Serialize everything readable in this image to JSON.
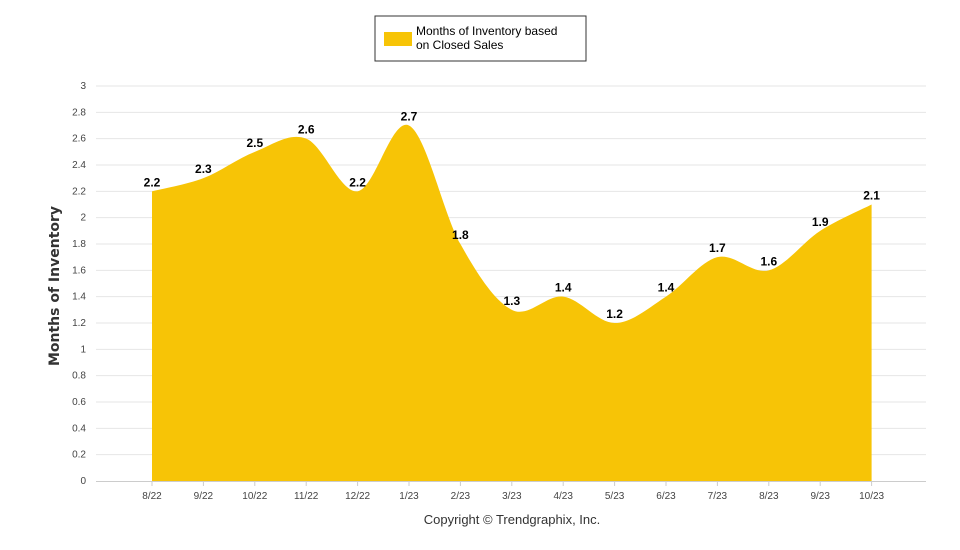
{
  "chart_data": {
    "type": "area",
    "categories": [
      "8/22",
      "9/22",
      "10/22",
      "11/22",
      "12/22",
      "1/23",
      "2/23",
      "3/23",
      "4/23",
      "5/23",
      "6/23",
      "7/23",
      "8/23",
      "9/23",
      "10/23"
    ],
    "series": [
      {
        "name": "Months of Inventory based on Closed Sales",
        "legend_lines": [
          "Months of Inventory based",
          "on Closed Sales"
        ],
        "values": [
          2.2,
          2.3,
          2.5,
          2.6,
          2.2,
          2.7,
          1.8,
          1.3,
          1.4,
          1.2,
          1.4,
          1.7,
          1.6,
          1.9,
          2.1
        ],
        "data_labels": [
          "2.2",
          "2.3",
          "2.5",
          "2.6",
          "2.2",
          "2.7",
          "1.8",
          "1.3",
          "1.4",
          "1.2",
          "1.4",
          "1.7",
          "1.6",
          "1.9",
          "2.1"
        ],
        "color": "#F7C406"
      }
    ],
    "ylabel": "Months of Inventory",
    "xlabel": "",
    "ylim": [
      0,
      3
    ],
    "yticks": [
      "0",
      "0.2",
      "0.4",
      "0.6",
      "0.8",
      "1",
      "1.2",
      "1.4",
      "1.6",
      "1.8",
      "2",
      "2.2",
      "2.4",
      "2.6",
      "2.8",
      "3"
    ],
    "grid": true,
    "legend_position": "top-center"
  },
  "footer": {
    "copyright": "Copyright © Trendgraphix, Inc."
  },
  "colors": {
    "gridline": "#E6E6E6",
    "axis": "#CCCCCC"
  }
}
